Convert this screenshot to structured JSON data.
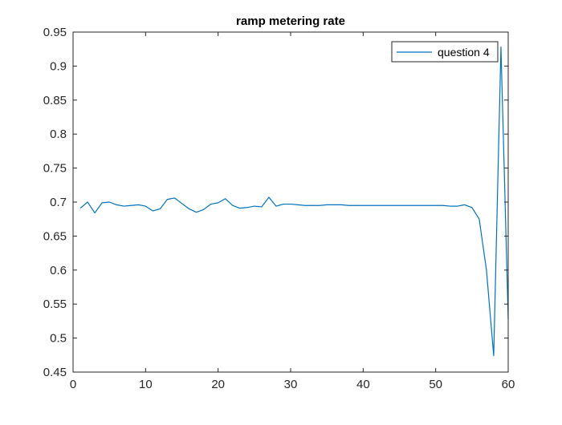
{
  "chart_data": {
    "type": "line",
    "title": "ramp metering rate",
    "xlabel": "",
    "ylabel": "",
    "xlim": [
      0,
      60
    ],
    "ylim": [
      0.45,
      0.95
    ],
    "xticks": [
      0,
      10,
      20,
      30,
      40,
      50,
      60
    ],
    "yticks": [
      0.45,
      0.5,
      0.55,
      0.6,
      0.65,
      0.7,
      0.75,
      0.8,
      0.85,
      0.9,
      0.95
    ],
    "xtick_labels": [
      "0",
      "10",
      "20",
      "30",
      "40",
      "50",
      "60"
    ],
    "ytick_labels": [
      "0.45",
      "0.5",
      "0.55",
      "0.6",
      "0.65",
      "0.7",
      "0.75",
      "0.8",
      "0.85",
      "0.9",
      "0.95"
    ],
    "grid": false,
    "legend": {
      "location": "top-right",
      "entries": [
        "question 4"
      ]
    },
    "series": [
      {
        "name": "question 4",
        "color": "#0072BD",
        "x": [
          1,
          2,
          3,
          4,
          5,
          6,
          7,
          8,
          9,
          10,
          11,
          12,
          13,
          14,
          15,
          16,
          17,
          18,
          19,
          20,
          21,
          22,
          23,
          24,
          25,
          26,
          27,
          28,
          29,
          30,
          31,
          32,
          33,
          34,
          35,
          36,
          37,
          38,
          39,
          40,
          41,
          42,
          43,
          44,
          45,
          46,
          47,
          48,
          49,
          50,
          51,
          52,
          53,
          54,
          55,
          56,
          57,
          58,
          59,
          60
        ],
        "y": [
          0.691,
          0.7,
          0.684,
          0.699,
          0.7,
          0.696,
          0.694,
          0.695,
          0.696,
          0.694,
          0.687,
          0.69,
          0.704,
          0.706,
          0.698,
          0.69,
          0.685,
          0.689,
          0.697,
          0.699,
          0.705,
          0.695,
          0.691,
          0.692,
          0.694,
          0.693,
          0.707,
          0.694,
          0.697,
          0.697,
          0.696,
          0.695,
          0.695,
          0.695,
          0.696,
          0.696,
          0.696,
          0.695,
          0.695,
          0.695,
          0.695,
          0.695,
          0.695,
          0.695,
          0.695,
          0.695,
          0.695,
          0.695,
          0.695,
          0.695,
          0.695,
          0.694,
          0.694,
          0.696,
          0.692,
          0.675,
          0.6,
          0.474,
          0.928,
          0.528
        ]
      }
    ]
  }
}
